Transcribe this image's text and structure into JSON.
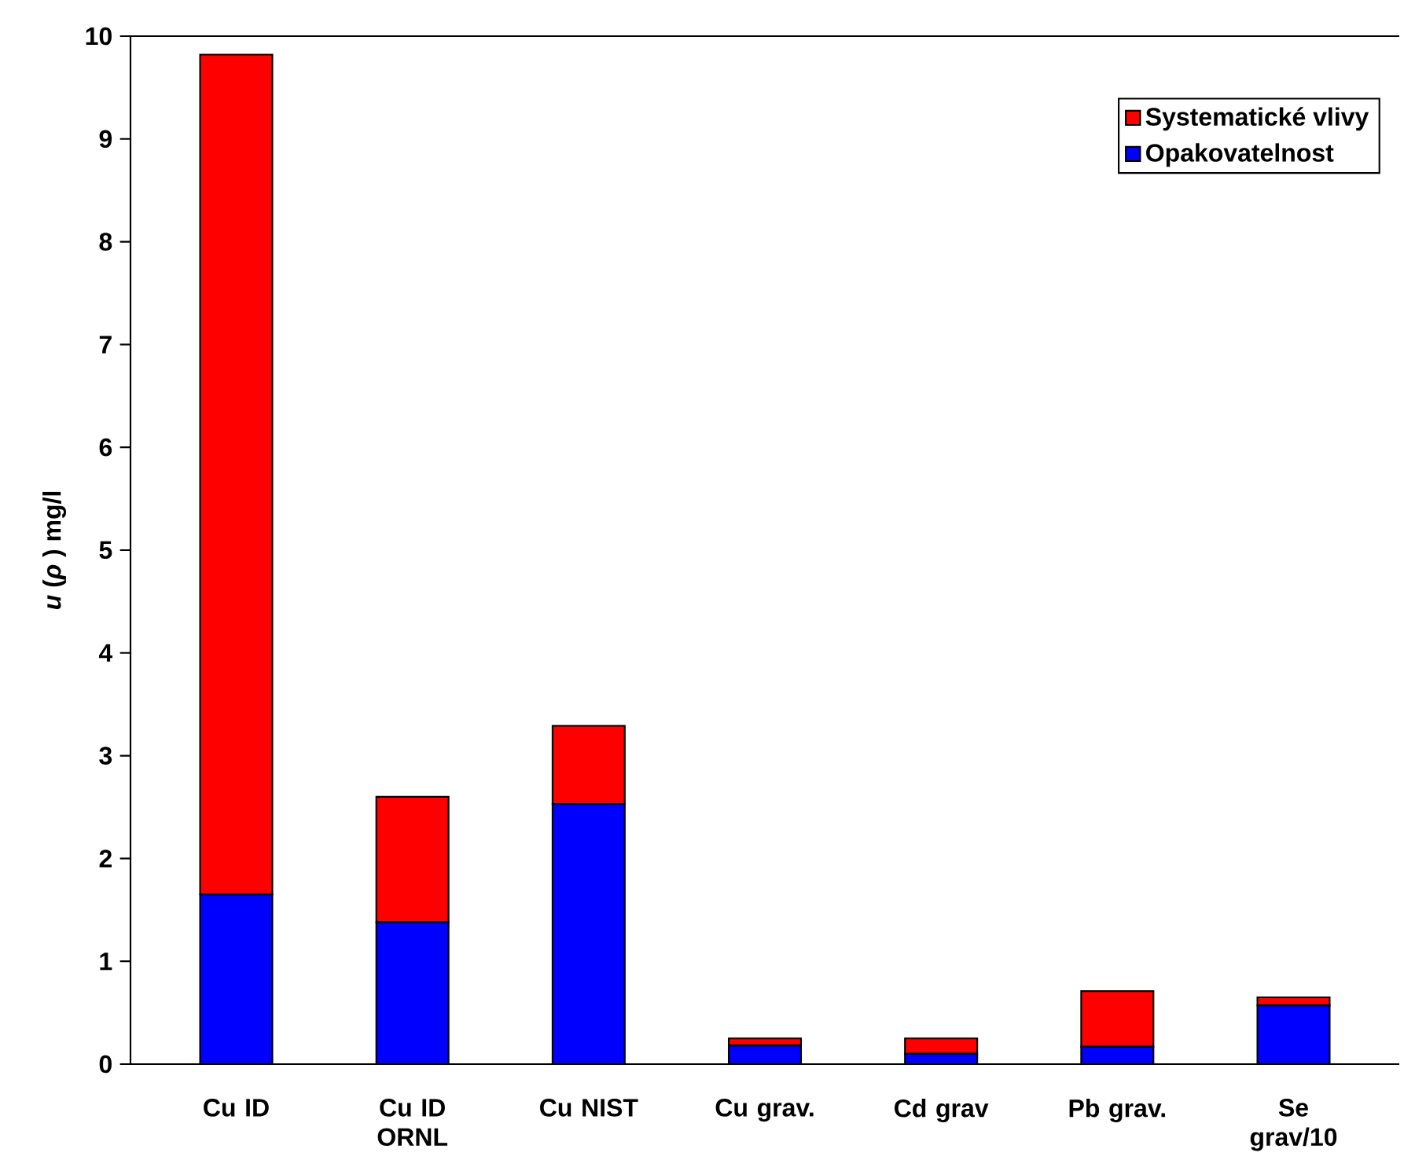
{
  "chart_data": {
    "type": "bar",
    "stacked": true,
    "ylabel": "*u* (*ρ* ) mg/l",
    "categories": [
      "Cu ID",
      "Cu ID ORNL",
      "Cu NIST",
      "Cu grav.",
      "Cd grav",
      "Pb grav.",
      "Se grav/10"
    ],
    "series": [
      {
        "name": "Opakovatelnost",
        "color": "#0000ff",
        "values": [
          1.65,
          1.38,
          2.53,
          0.18,
          0.1,
          0.17,
          0.57
        ]
      },
      {
        "name": "Systematické vlivy",
        "color": "#ff0000",
        "values": [
          8.17,
          1.22,
          0.76,
          0.07,
          0.15,
          0.54,
          0.08
        ]
      }
    ],
    "ylim": [
      0,
      10
    ],
    "yticks": [
      0,
      1,
      2,
      3,
      4,
      5,
      6,
      7,
      8,
      9,
      10
    ],
    "grid": false,
    "legend": "top right"
  }
}
